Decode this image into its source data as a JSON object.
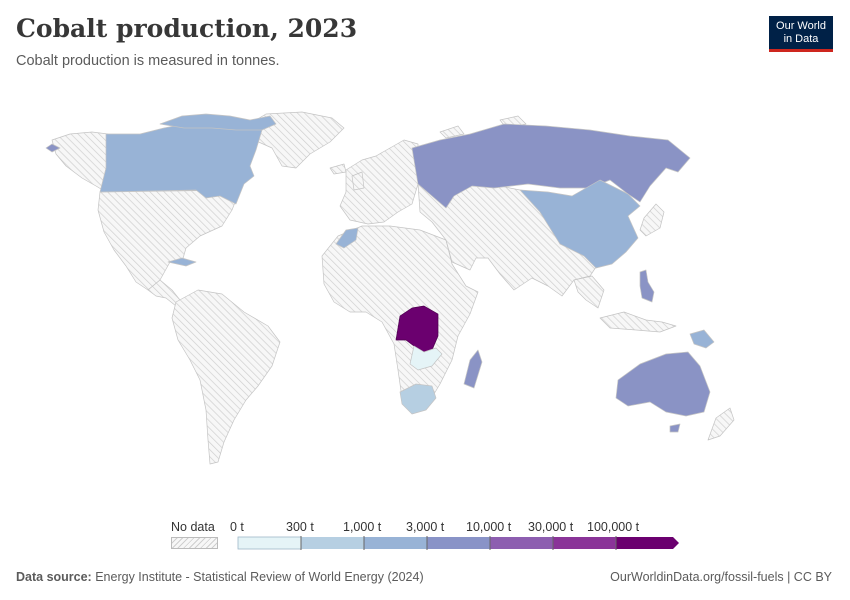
{
  "header": {
    "title": "Cobalt production, 2023",
    "subtitle": "Cobalt production is measured in tonnes."
  },
  "logo": {
    "line1": "Our World",
    "line2": "in Data"
  },
  "legend": {
    "no_data_label": "No data",
    "bins": [
      {
        "label": "0 t",
        "color": "#e5f4f7"
      },
      {
        "label": "300 t",
        "color": "#b6cfe2"
      },
      {
        "label": "1,000 t",
        "color": "#98b3d6"
      },
      {
        "label": "3,000 t",
        "color": "#8993c7"
      },
      {
        "label": "10,000 t",
        "color": "#8d5eb0"
      },
      {
        "label": "30,000 t",
        "color": "#8a3498"
      },
      {
        "label": "100,000 t",
        "color": "#6b006f"
      }
    ]
  },
  "map_data": {
    "unit": "t",
    "countries": [
      {
        "name": "Democratic Republic of Congo",
        "bin": "100,000 t+"
      },
      {
        "name": "Russia",
        "bin": "3,000–10,000 t"
      },
      {
        "name": "Australia",
        "bin": "3,000–10,000 t"
      },
      {
        "name": "Madagascar",
        "bin": "3,000–10,000 t"
      },
      {
        "name": "Philippines",
        "bin": "3,000–10,000 t"
      },
      {
        "name": "Canada",
        "bin": "1,000–3,000 t"
      },
      {
        "name": "China",
        "bin": "1,000–3,000 t"
      },
      {
        "name": "Cuba",
        "bin": "1,000–3,000 t"
      },
      {
        "name": "Papua New Guinea",
        "bin": "1,000–3,000 t"
      },
      {
        "name": "Morocco",
        "bin": "1,000–3,000 t"
      },
      {
        "name": "South Africa",
        "bin": "300–1,000 t"
      },
      {
        "name": "Zambia",
        "bin": "0–300 t"
      }
    ]
  },
  "footer": {
    "source_label": "Data source:",
    "source_text": "Energy Institute - Statistical Review of World Energy (2024)",
    "credit": "OurWorldinData.org/fossil-fuels | CC BY"
  }
}
